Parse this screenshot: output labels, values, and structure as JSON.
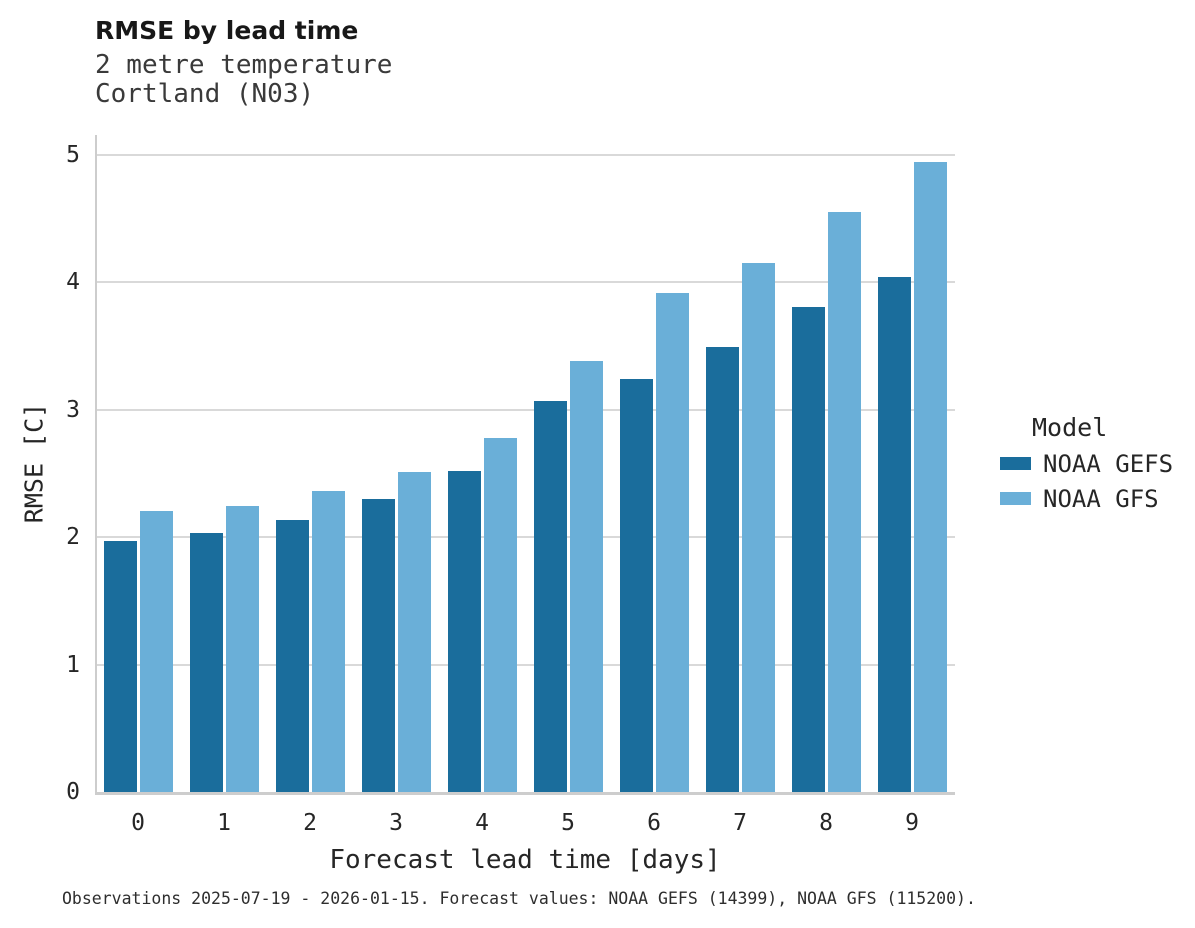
{
  "chart_data": {
    "type": "bar",
    "title": "RMSE by lead time",
    "subtitle_line1": "2 metre temperature",
    "subtitle_line2": "Cortland (N03)",
    "xlabel": "Forecast lead time [days]",
    "ylabel": "RMSE [C]",
    "categories": [
      "0",
      "1",
      "2",
      "3",
      "4",
      "5",
      "6",
      "7",
      "8",
      "9"
    ],
    "yticks": [
      0,
      1,
      2,
      3,
      4,
      5
    ],
    "ylim": [
      0,
      5.15
    ],
    "grid": "horizontal",
    "legend": {
      "title": "Model",
      "position": "right"
    },
    "series": [
      {
        "name": "NOAA GEFS",
        "color": "#1a6d9c",
        "values": [
          1.97,
          2.03,
          2.13,
          2.3,
          2.52,
          3.07,
          3.24,
          3.49,
          3.8,
          4.04
        ]
      },
      {
        "name": "NOAA GFS",
        "color": "#6aafd8",
        "values": [
          2.2,
          2.24,
          2.36,
          2.51,
          2.78,
          3.38,
          3.91,
          4.15,
          4.55,
          4.94
        ]
      }
    ],
    "caption": "Observations 2025-07-19 - 2026-01-15. Forecast values: NOAA GEFS (14399), NOAA GFS (115200)."
  },
  "colors": {
    "grid": "#d9d9d9",
    "spine": "#cdcdcd",
    "background": "#ffffff"
  }
}
